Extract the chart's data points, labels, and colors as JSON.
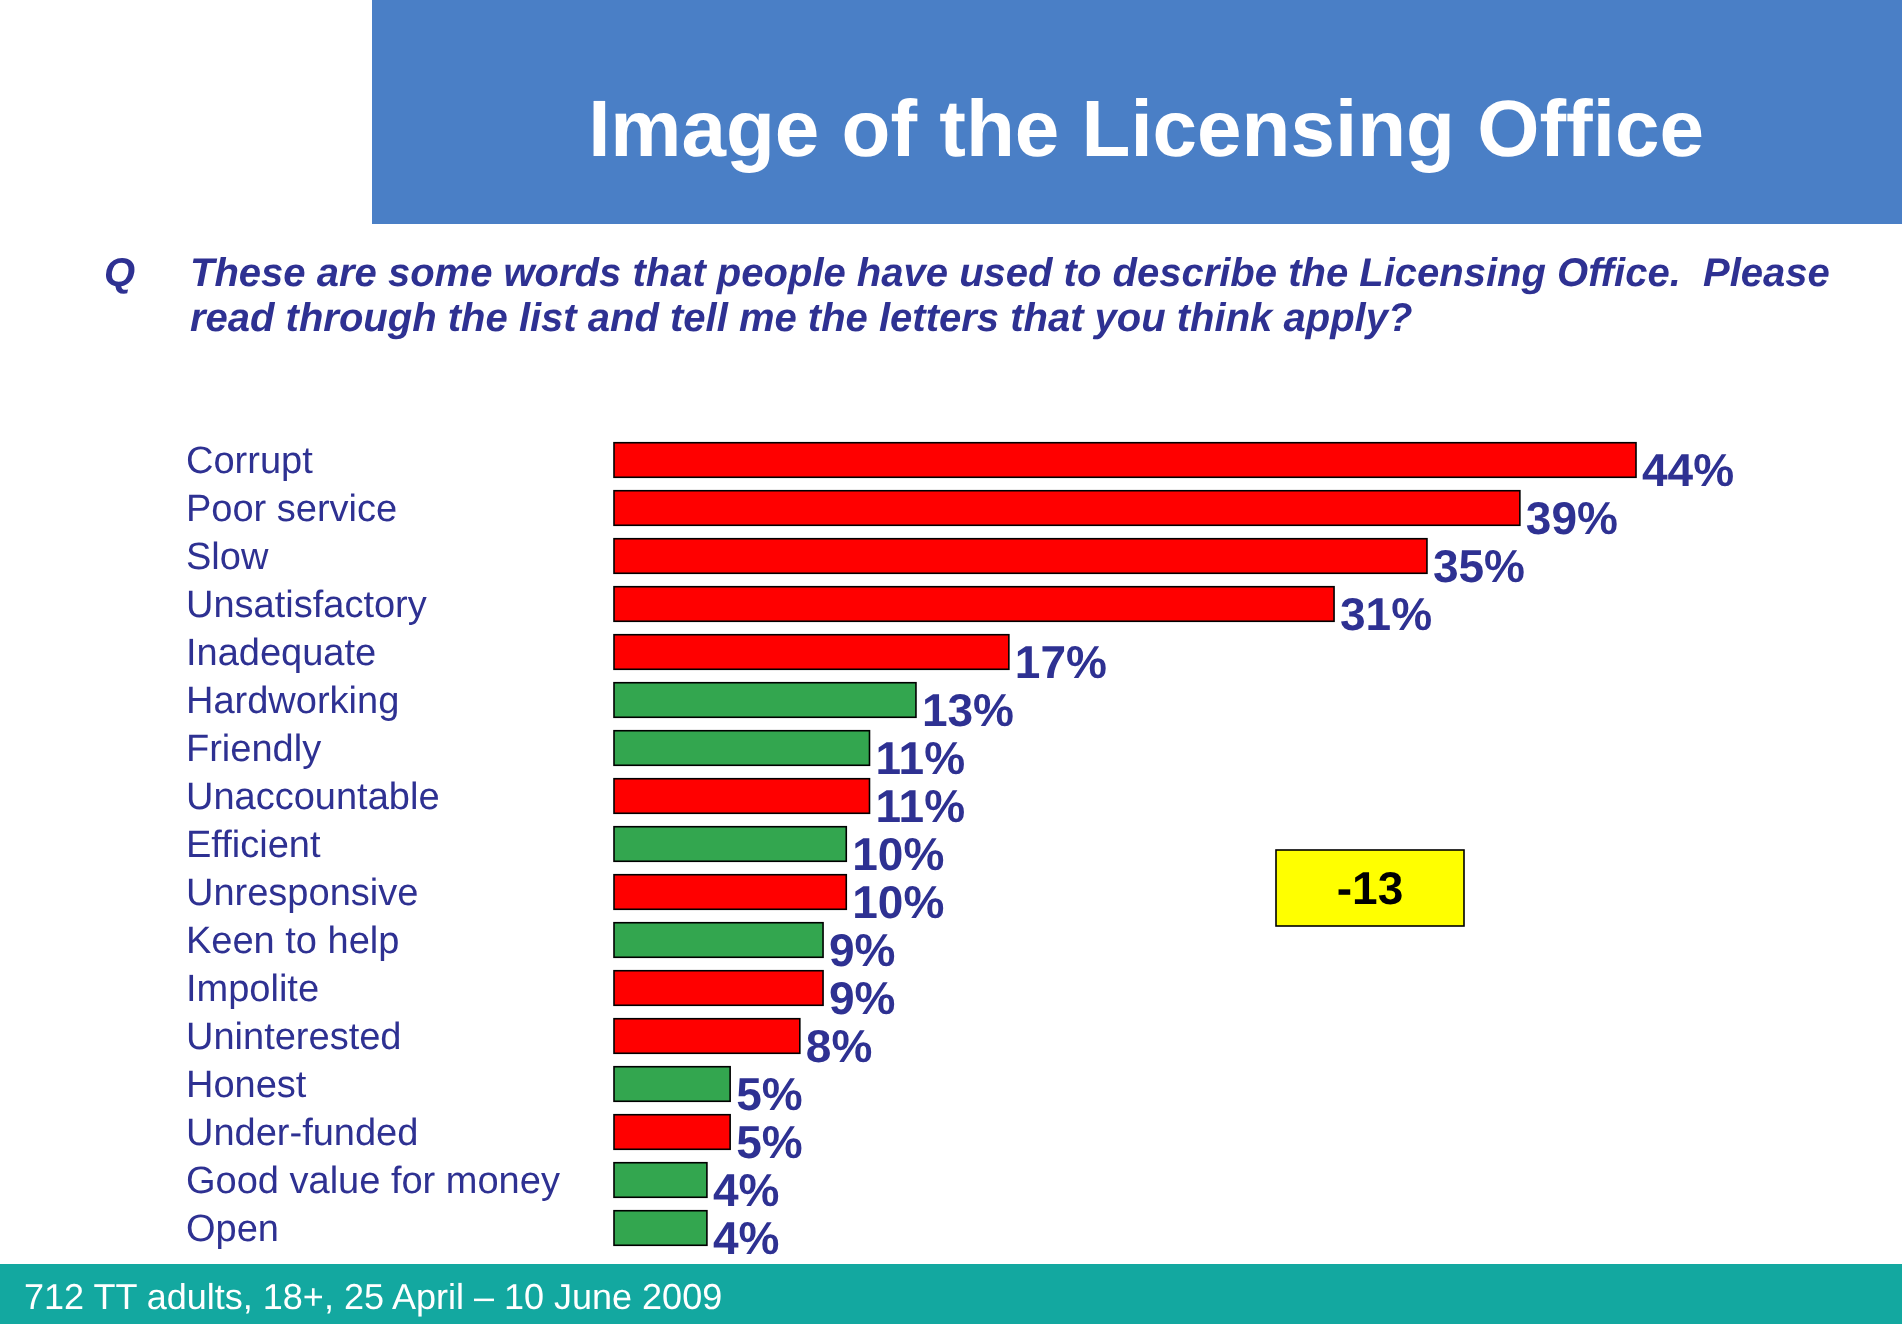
{
  "chart_data": {
    "type": "bar",
    "orientation": "horizontal",
    "title": "Image of the Licensing Office",
    "subtitle": "These are some words that people have used to describe the Licensing Office.  Please read through the list and tell me the letters that you think apply?",
    "categories": [
      "Corrupt",
      "Poor service",
      "Slow",
      "Unsatisfactory",
      "Inadequate",
      "Hardworking",
      "Friendly",
      "Unaccountable",
      "Efficient",
      "Unresponsive",
      "Keen to help",
      "Impolite",
      "Uninterested",
      "Honest",
      "Under-funded",
      "Good value for money",
      "Open"
    ],
    "values": [
      44,
      39,
      35,
      31,
      17,
      13,
      11,
      11,
      10,
      10,
      9,
      9,
      8,
      5,
      5,
      4,
      4
    ],
    "value_labels": [
      "44%",
      "39%",
      "35%",
      "31%",
      "17%",
      "13%",
      "11%",
      "11%",
      "10%",
      "10%",
      "9%",
      "9%",
      "8%",
      "5%",
      "5%",
      "4%",
      "4%"
    ],
    "colors": [
      "#ff0000",
      "#ff0000",
      "#ff0000",
      "#ff0000",
      "#ff0000",
      "#33a64f",
      "#33a64f",
      "#ff0000",
      "#33a64f",
      "#ff0000",
      "#33a64f",
      "#ff0000",
      "#ff0000",
      "#33a64f",
      "#ff0000",
      "#33a64f",
      "#33a64f"
    ],
    "annotations": [
      "Q",
      "-13",
      "712 TT adults, 18+, 25 April – 10 June 2009"
    ]
  }
}
